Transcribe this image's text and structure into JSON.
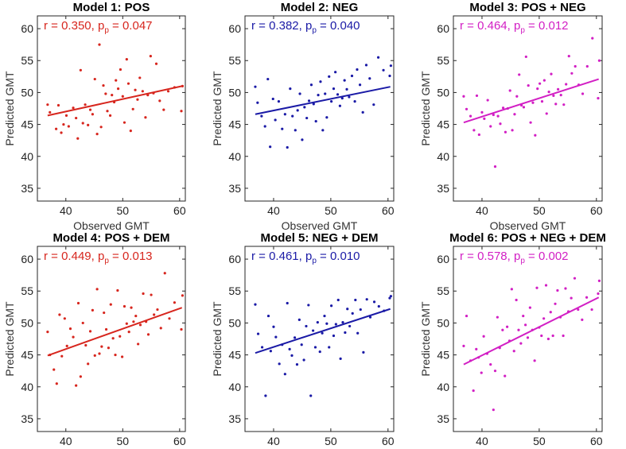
{
  "figure": {
    "description_free": true
  },
  "chart_data": [
    {
      "type": "scatter",
      "title": "Model 1: POS",
      "xlabel": "Observed GMT",
      "ylabel": "Predicted GMT",
      "xlim": [
        35,
        61
      ],
      "ylim": [
        33,
        62
      ],
      "xticks": [
        40,
        50,
        60
      ],
      "yticks": [
        35,
        40,
        45,
        50,
        55,
        60
      ],
      "color": "#d7261e",
      "stat": {
        "r_text": "r = 0.350, p",
        "p_sub": "p",
        "p_text": " = 0.047"
      },
      "fit": {
        "x": [
          36.8,
          60.4
        ],
        "y": [
          46.4,
          51.0
        ]
      },
      "points": {
        "x": [
          36.8,
          37.2,
          38.3,
          38.7,
          39.2,
          39.6,
          40.1,
          40.5,
          41.3,
          41.8,
          42.1,
          42.6,
          43.0,
          43.4,
          43.9,
          44.3,
          44.7,
          45.1,
          45.5,
          45.9,
          46.2,
          46.6,
          47.0,
          47.3,
          47.8,
          48.1,
          48.5,
          48.8,
          49.2,
          49.6,
          50.0,
          50.3,
          50.7,
          51.0,
          51.4,
          51.8,
          52.2,
          52.6,
          53.0,
          53.5,
          54.0,
          54.4,
          54.9,
          55.4,
          55.9,
          56.5,
          57.2,
          58.0,
          59.1,
          60.3,
          60.5
        ],
        "y": [
          48.1,
          46.9,
          44.3,
          48.0,
          43.7,
          45.0,
          46.4,
          44.7,
          47.6,
          46.0,
          42.8,
          53.5,
          45.2,
          48.1,
          44.9,
          47.3,
          46.6,
          52.1,
          43.5,
          57.5,
          44.6,
          51.1,
          49.8,
          47.1,
          46.4,
          49.6,
          48.5,
          51.9,
          50.6,
          53.6,
          49.4,
          45.3,
          55.2,
          51.4,
          44.0,
          47.4,
          50.4,
          48.9,
          52.3,
          50.2,
          46.1,
          49.6,
          55.7,
          49.9,
          54.5,
          48.7,
          47.3,
          50.2,
          50.8,
          47.1,
          51.0
        ]
      }
    },
    {
      "type": "scatter",
      "title": "Model 2: NEG",
      "xlabel": "Observed GMT",
      "ylabel": "Predicted GMT",
      "xlim": [
        35,
        61
      ],
      "ylim": [
        33,
        62
      ],
      "xticks": [
        40,
        50,
        60
      ],
      "yticks": [
        35,
        40,
        45,
        50,
        55,
        60
      ],
      "color": "#1a1aa6",
      "stat": {
        "r_text": "r = 0.382, p",
        "p_sub": "p",
        "p_text": " = 0.040"
      },
      "fit": {
        "x": [
          36.8,
          60.4
        ],
        "y": [
          46.6,
          50.9
        ]
      },
      "points": {
        "x": [
          36.8,
          37.2,
          37.9,
          38.5,
          39.0,
          39.4,
          39.9,
          40.3,
          40.9,
          41.5,
          42.0,
          42.4,
          42.9,
          43.3,
          43.8,
          44.2,
          44.6,
          45.0,
          45.4,
          45.8,
          46.2,
          46.6,
          47.0,
          47.4,
          47.8,
          48.2,
          48.6,
          49.0,
          49.3,
          49.7,
          50.1,
          50.5,
          50.8,
          51.2,
          51.6,
          52.0,
          52.4,
          52.8,
          53.2,
          53.7,
          54.2,
          54.6,
          55.1,
          55.6,
          56.2,
          56.8,
          57.5,
          58.3,
          59.2,
          60.3,
          60.5
        ],
        "y": [
          50.9,
          48.4,
          46.3,
          44.7,
          52.1,
          41.5,
          49.0,
          45.7,
          48.6,
          44.3,
          46.6,
          41.4,
          50.6,
          46.3,
          44.1,
          47.2,
          49.8,
          42.6,
          47.7,
          46.0,
          48.7,
          51.2,
          48.2,
          45.5,
          49.6,
          51.7,
          44.1,
          49.8,
          46.1,
          52.5,
          48.6,
          50.6,
          53.2,
          49.7,
          47.9,
          49.1,
          51.9,
          50.5,
          49.3,
          52.6,
          48.6,
          53.6,
          51.2,
          46.9,
          54.3,
          52.2,
          48.1,
          55.5,
          53.5,
          52.6,
          54.2
        ]
      }
    },
    {
      "type": "scatter",
      "title": "Model 3: POS + NEG",
      "xlabel": "Observed GMT",
      "ylabel": "Predicted GMT",
      "xlim": [
        35,
        61
      ],
      "ylim": [
        33,
        62
      ],
      "xticks": [
        40,
        50,
        60
      ],
      "yticks": [
        35,
        40,
        45,
        50,
        55,
        60
      ],
      "color": "#d21fc4",
      "stat": {
        "r_text": "r = 0.464, p",
        "p_sub": "p",
        "p_text": " = 0.012"
      },
      "fit": {
        "x": [
          36.8,
          60.4
        ],
        "y": [
          45.3,
          52.1
        ]
      },
      "points": {
        "x": [
          36.8,
          37.3,
          38.0,
          38.6,
          39.1,
          39.5,
          40.0,
          40.4,
          41.0,
          41.5,
          42.0,
          42.3,
          42.8,
          43.2,
          43.7,
          44.1,
          44.5,
          44.9,
          45.3,
          45.7,
          46.1,
          46.5,
          46.9,
          47.3,
          47.7,
          48.1,
          48.5,
          48.9,
          49.3,
          49.7,
          50.1,
          50.5,
          50.9,
          51.3,
          51.7,
          52.1,
          52.5,
          52.9,
          53.3,
          53.8,
          54.3,
          54.7,
          55.2,
          55.7,
          56.3,
          56.9,
          57.6,
          58.4,
          59.3,
          60.3,
          60.5
        ],
        "y": [
          49.4,
          47.4,
          46.3,
          44.1,
          49.5,
          43.4,
          46.9,
          45.9,
          48.8,
          44.7,
          46.5,
          38.4,
          46.3,
          45.1,
          47.6,
          43.8,
          47.5,
          50.3,
          44.1,
          46.6,
          49.4,
          52.8,
          48.0,
          47.7,
          55.6,
          51.1,
          45.3,
          48.4,
          43.3,
          50.6,
          51.4,
          48.6,
          51.9,
          46.7,
          50.1,
          52.9,
          49.5,
          48.2,
          50.5,
          49.6,
          48.1,
          51.3,
          55.7,
          53.0,
          54.1,
          51.2,
          49.8,
          54.1,
          58.5,
          49.1,
          55.0
        ]
      }
    },
    {
      "type": "scatter",
      "title": "Model 4: POS + DEM",
      "xlabel": "Observed GMT",
      "ylabel": "Predicted GMT",
      "xlim": [
        35,
        61
      ],
      "ylim": [
        33,
        62
      ],
      "xticks": [
        40,
        50,
        60
      ],
      "yticks": [
        35,
        40,
        45,
        50,
        55,
        60
      ],
      "color": "#d7261e",
      "stat": {
        "r_text": "r = 0.449, p",
        "p_sub": "p",
        "p_text": " = 0.013"
      },
      "fit": {
        "x": [
          36.8,
          60.4
        ],
        "y": [
          44.9,
          52.4
        ]
      },
      "points": {
        "x": [
          36.8,
          37.2,
          37.9,
          38.4,
          38.9,
          39.3,
          39.8,
          40.2,
          40.8,
          41.3,
          41.8,
          42.2,
          42.6,
          43.0,
          43.5,
          43.9,
          44.3,
          44.7,
          45.1,
          45.5,
          45.9,
          46.3,
          46.7,
          47.1,
          47.5,
          47.9,
          48.3,
          48.7,
          49.1,
          49.5,
          49.9,
          50.3,
          50.7,
          51.1,
          51.5,
          51.9,
          52.3,
          52.7,
          53.1,
          53.6,
          54.1,
          54.5,
          55.0,
          55.5,
          56.1,
          56.7,
          57.4,
          58.2,
          59.1,
          60.3,
          60.5
        ],
        "y": [
          48.6,
          45.0,
          42.7,
          40.5,
          51.3,
          44.8,
          50.7,
          46.4,
          49.1,
          47.8,
          40.2,
          53.1,
          41.6,
          50.0,
          46.5,
          43.6,
          48.7,
          52.0,
          44.9,
          55.3,
          45.2,
          46.3,
          51.6,
          49.0,
          46.1,
          52.9,
          47.6,
          45.0,
          55.1,
          47.9,
          44.7,
          52.6,
          49.9,
          48.6,
          52.4,
          50.2,
          51.1,
          46.7,
          49.7,
          54.6,
          50.2,
          48.2,
          54.4,
          51.3,
          52.1,
          49.2,
          57.8,
          50.7,
          53.2,
          49.0,
          54.3
        ]
      }
    },
    {
      "type": "scatter",
      "title": "Model 5: NEG + DEM",
      "xlabel": "Observed GMT",
      "ylabel": "Predicted GMT",
      "xlim": [
        35,
        61
      ],
      "ylim": [
        33,
        62
      ],
      "xticks": [
        40,
        50,
        60
      ],
      "yticks": [
        35,
        40,
        45,
        50,
        55,
        60
      ],
      "color": "#1a1aa6",
      "stat": {
        "r_text": "r = 0.461, p",
        "p_sub": "p",
        "p_text": " = 0.010"
      },
      "fit": {
        "x": [
          36.8,
          60.4
        ],
        "y": [
          45.3,
          52.2
        ]
      },
      "points": {
        "x": [
          36.8,
          37.3,
          38.0,
          38.6,
          39.1,
          39.5,
          40.0,
          40.4,
          41.0,
          41.5,
          42.0,
          42.4,
          42.8,
          43.2,
          43.7,
          44.1,
          44.5,
          44.9,
          45.3,
          45.7,
          46.1,
          46.5,
          46.9,
          47.3,
          47.7,
          48.1,
          48.5,
          48.9,
          49.3,
          49.7,
          50.1,
          50.5,
          50.9,
          51.3,
          51.7,
          52.1,
          52.5,
          52.9,
          53.3,
          53.8,
          54.3,
          54.7,
          55.2,
          55.7,
          56.3,
          56.9,
          57.6,
          58.4,
          59.3,
          60.3,
          60.5
        ],
        "y": [
          52.9,
          48.3,
          46.2,
          38.6,
          51.1,
          45.6,
          49.4,
          47.8,
          43.6,
          46.6,
          42.0,
          53.1,
          45.9,
          44.9,
          47.7,
          43.5,
          50.5,
          46.6,
          44.2,
          49.5,
          52.8,
          38.6,
          48.8,
          46.2,
          50.1,
          45.5,
          48.4,
          51.1,
          49.9,
          46.2,
          52.7,
          48.0,
          49.8,
          53.6,
          44.4,
          50.1,
          48.5,
          52.2,
          49.5,
          51.5,
          53.6,
          48.4,
          52.1,
          45.4,
          53.7,
          50.9,
          53.3,
          52.6,
          51.9,
          53.9,
          54.2
        ]
      }
    },
    {
      "type": "scatter",
      "title": "Model 6: POS + NEG + DEM",
      "xlabel": "Observed GMT",
      "ylabel": "Predicted GMT",
      "xlim": [
        35,
        61
      ],
      "ylim": [
        33,
        62
      ],
      "xticks": [
        40,
        50,
        60
      ],
      "yticks": [
        35,
        40,
        45,
        50,
        55,
        60
      ],
      "color": "#d21fc4",
      "stat": {
        "r_text": "r = 0.578, p",
        "p_sub": "p",
        "p_text": " = 0.002"
      },
      "fit": {
        "x": [
          36.8,
          60.4
        ],
        "y": [
          43.5,
          54.0
        ]
      },
      "points": {
        "x": [
          36.8,
          37.3,
          38.0,
          38.5,
          39.0,
          39.4,
          39.9,
          40.3,
          40.9,
          41.5,
          42.0,
          42.3,
          42.7,
          43.1,
          43.6,
          44.0,
          44.4,
          44.8,
          45.2,
          45.6,
          46.0,
          46.4,
          46.8,
          47.2,
          47.6,
          48.0,
          48.4,
          48.8,
          49.2,
          49.6,
          50.0,
          50.4,
          50.8,
          51.2,
          51.6,
          52.0,
          52.4,
          52.8,
          53.2,
          53.7,
          54.2,
          54.6,
          55.1,
          55.6,
          56.2,
          56.8,
          57.5,
          58.3,
          59.2,
          60.3,
          60.5
        ],
        "y": [
          46.4,
          51.1,
          44.1,
          39.4,
          45.9,
          44.6,
          42.2,
          47.9,
          45.2,
          43.5,
          36.4,
          42.5,
          50.9,
          46.1,
          48.9,
          41.7,
          49.4,
          47.2,
          55.3,
          45.6,
          53.6,
          48.9,
          46.8,
          51.1,
          49.7,
          47.7,
          52.4,
          48.9,
          44.1,
          55.5,
          49.3,
          48.0,
          50.7,
          55.9,
          47.5,
          51.7,
          48.0,
          53.0,
          55.1,
          50.9,
          48.0,
          55.4,
          51.8,
          53.9,
          57.0,
          52.1,
          50.5,
          54.0,
          52.1,
          54.6,
          56.6
        ]
      }
    }
  ]
}
